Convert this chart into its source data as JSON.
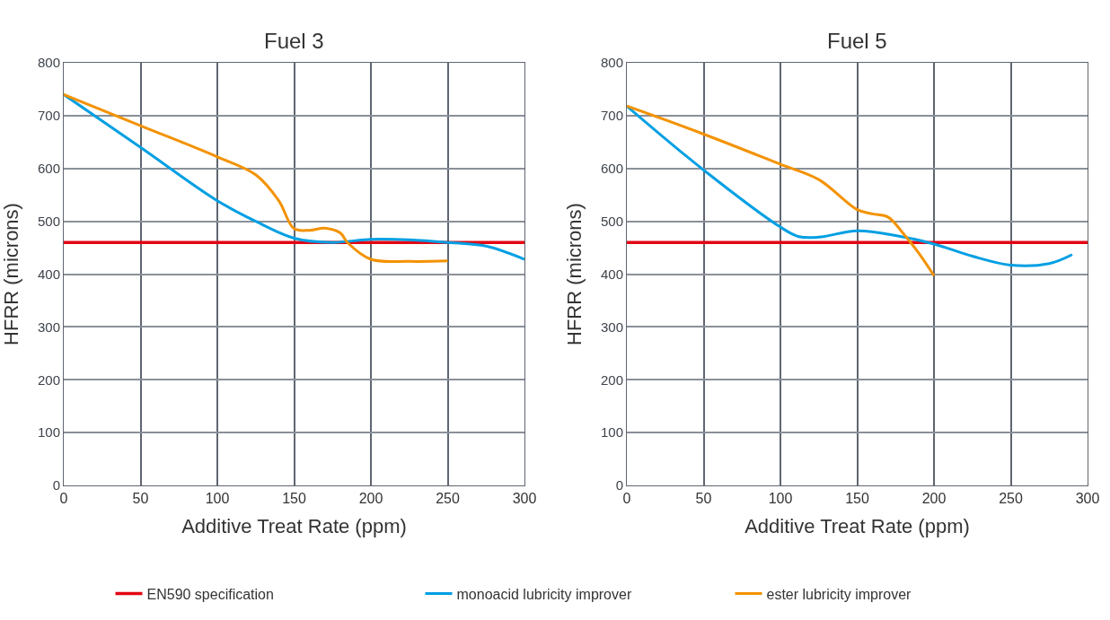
{
  "chart_data": [
    {
      "type": "line",
      "title": "Fuel 3",
      "xlabel": "Additive Treat Rate (ppm)",
      "ylabel": "HFRR (microns)",
      "xlim": [
        0,
        300
      ],
      "xticks": [
        0,
        50,
        100,
        150,
        200,
        250,
        300
      ],
      "ylim": [
        0,
        800
      ],
      "yticks": [
        0,
        100,
        200,
        300,
        400,
        500,
        600,
        700,
        800
      ],
      "grid": true,
      "legend": "bottom",
      "marker": "none",
      "line_style": "solid",
      "ref_lines": [
        {
          "axis": "y",
          "value": 460,
          "label": "EN590 specification",
          "color": "#e30613"
        }
      ],
      "series": [
        {
          "name": "monoacid lubricity improver",
          "color": "#009fe3",
          "x": [
            0,
            50,
            100,
            125,
            150,
            175,
            200,
            225,
            250,
            275,
            300
          ],
          "values": [
            740,
            640,
            539,
            500,
            468,
            460,
            466,
            465,
            460,
            453,
            428
          ]
        },
        {
          "name": "ester lubricity improver",
          "color": "#f39200",
          "x": [
            0,
            50,
            100,
            125,
            140,
            150,
            160,
            170,
            180,
            185,
            200,
            225,
            250
          ],
          "values": [
            740,
            681,
            622,
            588,
            539,
            486,
            483,
            487,
            478,
            459,
            428,
            424,
            425
          ]
        }
      ]
    },
    {
      "type": "line",
      "title": "Fuel 5",
      "xlabel": "Additive Treat Rate (ppm)",
      "ylabel": "HFRR (microns)",
      "xlim": [
        0,
        300
      ],
      "xticks": [
        0,
        50,
        100,
        150,
        200,
        250,
        300
      ],
      "ylim": [
        0,
        800
      ],
      "yticks": [
        0,
        100,
        200,
        300,
        400,
        500,
        600,
        700,
        800
      ],
      "grid": true,
      "legend": "bottom",
      "marker": "none",
      "line_style": "solid",
      "ref_lines": [
        {
          "axis": "y",
          "value": 460,
          "color": "#e30613"
        }
      ],
      "series": [
        {
          "color": "#009fe3",
          "x": [
            0,
            50,
            100,
            112,
            125,
            150,
            175,
            200,
            225,
            250,
            275,
            290
          ],
          "values": [
            718,
            597,
            489,
            471,
            470,
            482,
            473,
            457,
            434,
            417,
            420,
            437
          ]
        },
        {
          "color": "#f39200",
          "x": [
            0,
            50,
            100,
            125,
            150,
            160,
            170,
            180,
            190,
            200
          ],
          "values": [
            718,
            665,
            608,
            579,
            522,
            514,
            508,
            477,
            440,
            397
          ]
        }
      ]
    }
  ]
}
